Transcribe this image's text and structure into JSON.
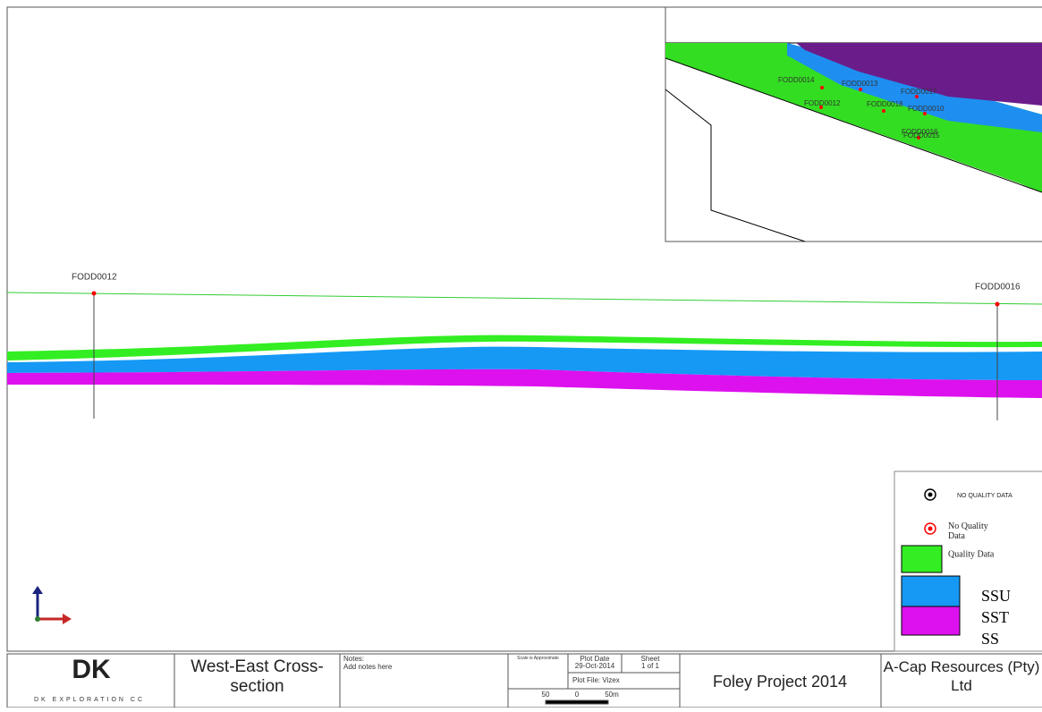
{
  "inset": {
    "holes": [
      "FODD0014",
      "FODD0013",
      "FODD0017",
      "FODD0012",
      "FODD0018",
      "FODD0010",
      "FODD0016",
      "FODD0015"
    ]
  },
  "section": {
    "holes": [
      "FODD0012",
      "FODD0016"
    ]
  },
  "legend": {
    "no_quality_upper": "NO QUALITY DATA",
    "no_quality": "No Quality Data",
    "quality": "Quality Data",
    "units": [
      "SSU",
      "SST",
      "SS"
    ]
  },
  "title_block": {
    "logo": "DK",
    "company_short": "DK EXPLORATION CC",
    "drawing_title": "West-East Cross-section",
    "notes_label": "Notes:",
    "notes": "Add notes here",
    "scale_note": "Scale is Approximate",
    "plot_date_label": "Plot Date",
    "plot_date": "29-Oct-2014",
    "sheet_label": "Sheet",
    "sheet": "1 of 1",
    "plot_file": "Plot File: Vizex",
    "scale_ticks": [
      "50",
      "0",
      "50m"
    ],
    "project": "Foley Project 2014",
    "client": "A-Cap Resources (Pty) Ltd"
  }
}
